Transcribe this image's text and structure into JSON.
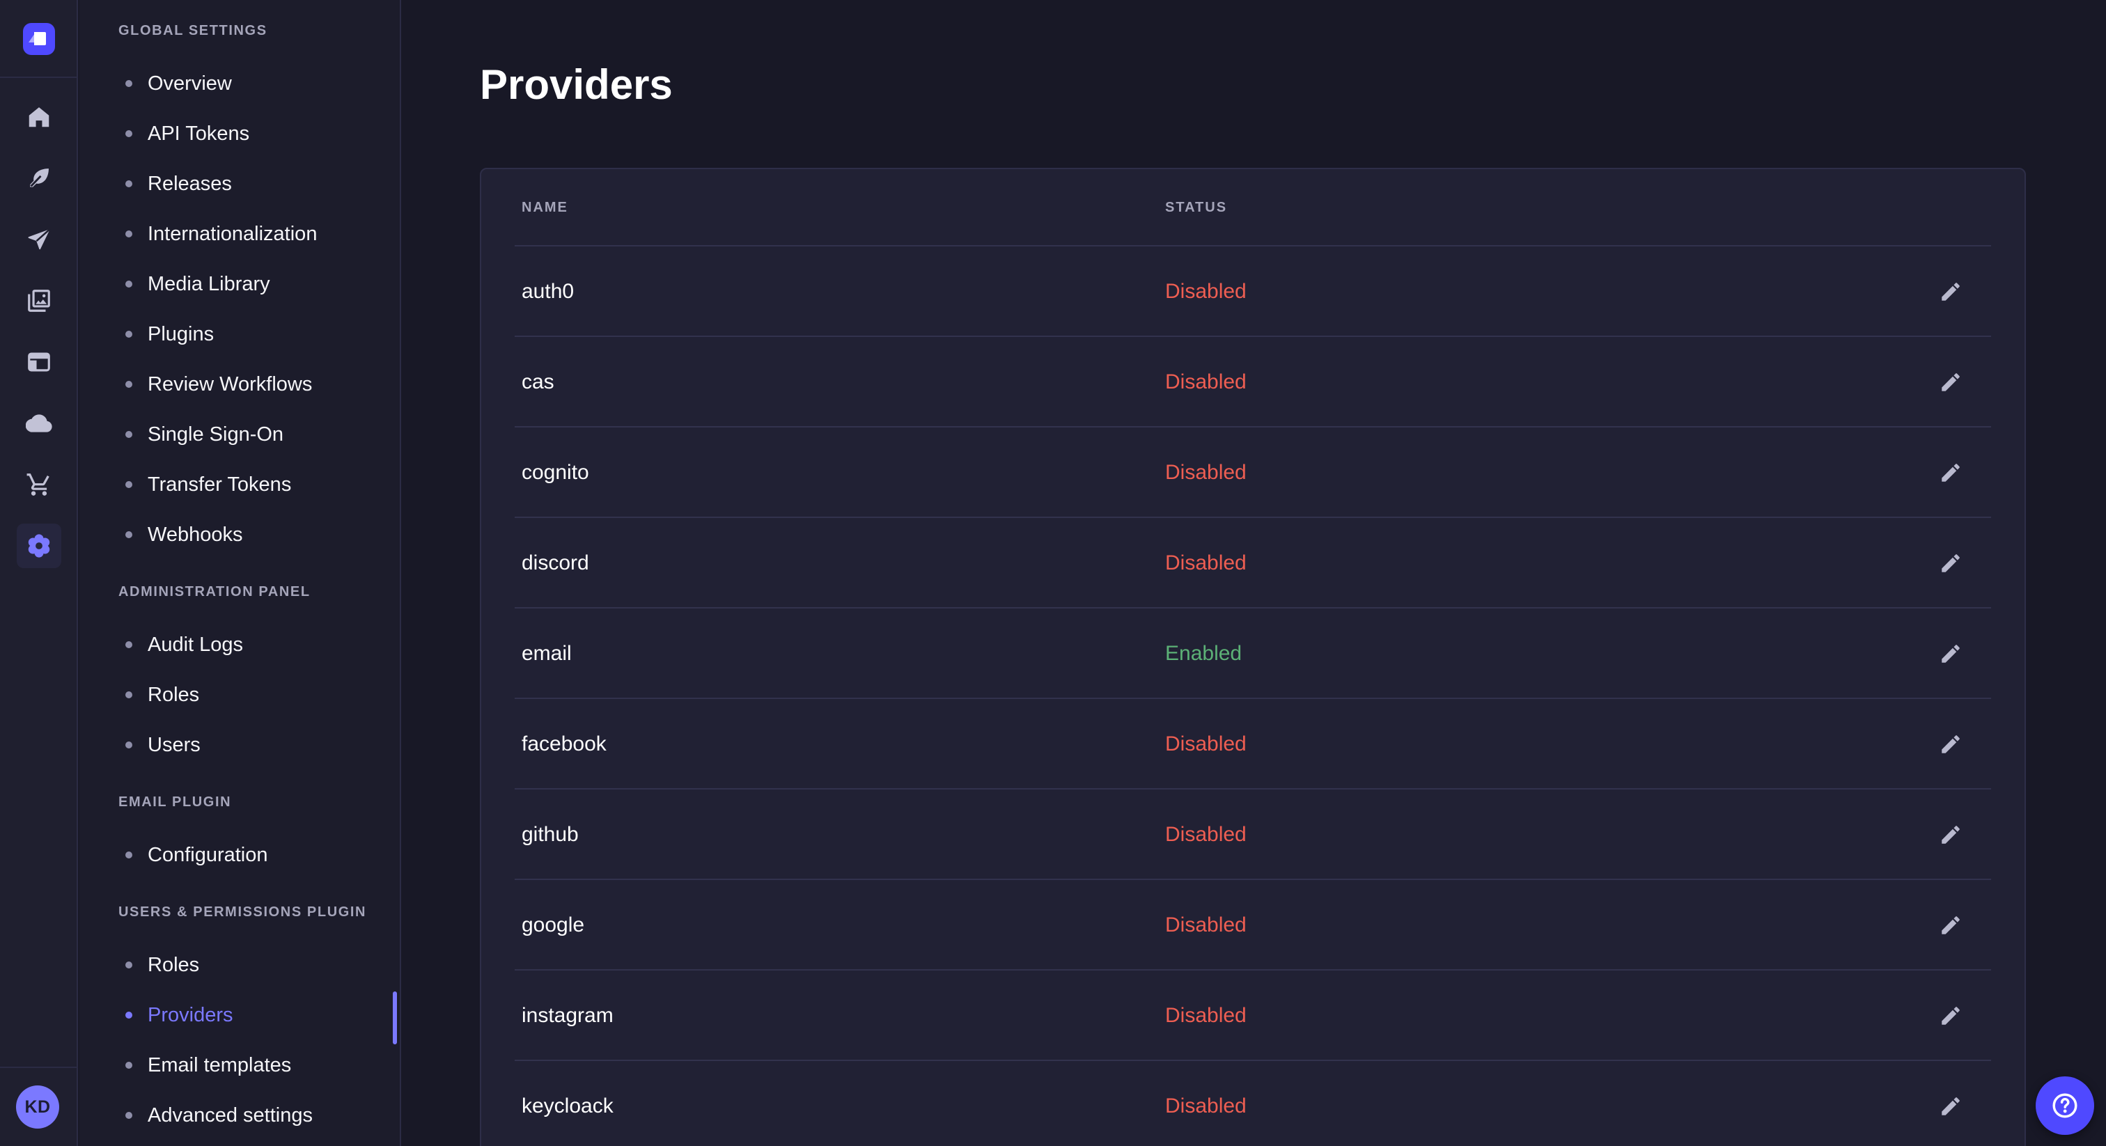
{
  "colors": {
    "primary": "#4f49ff",
    "primary_light": "#7b79ff",
    "success": "#5cb176",
    "danger": "#ee5e52",
    "surface": "#212134",
    "background": "#181826"
  },
  "nav_rail": {
    "logo_icon": "strapi-logo",
    "items": [
      {
        "icon": "home-icon"
      },
      {
        "icon": "feather-icon"
      },
      {
        "icon": "send-icon"
      },
      {
        "icon": "media-library-icon"
      },
      {
        "icon": "layout-icon"
      },
      {
        "icon": "cloud-icon"
      },
      {
        "icon": "cart-icon"
      },
      {
        "icon": "settings-gear-icon",
        "active": true
      }
    ],
    "avatar_initials": "KD"
  },
  "subnav": {
    "sections": [
      {
        "heading": "GLOBAL SETTINGS",
        "items": [
          {
            "label": "Overview"
          },
          {
            "label": "API Tokens"
          },
          {
            "label": "Releases"
          },
          {
            "label": "Internationalization"
          },
          {
            "label": "Media Library"
          },
          {
            "label": "Plugins"
          },
          {
            "label": "Review Workflows"
          },
          {
            "label": "Single Sign-On"
          },
          {
            "label": "Transfer Tokens"
          },
          {
            "label": "Webhooks"
          }
        ]
      },
      {
        "heading": "ADMINISTRATION PANEL",
        "items": [
          {
            "label": "Audit Logs"
          },
          {
            "label": "Roles"
          },
          {
            "label": "Users"
          }
        ]
      },
      {
        "heading": "EMAIL PLUGIN",
        "items": [
          {
            "label": "Configuration"
          }
        ]
      },
      {
        "heading": "USERS & PERMISSIONS PLUGIN",
        "items": [
          {
            "label": "Roles"
          },
          {
            "label": "Providers",
            "active": true
          },
          {
            "label": "Email templates"
          },
          {
            "label": "Advanced settings"
          }
        ]
      }
    ]
  },
  "page": {
    "title": "Providers"
  },
  "table": {
    "headers": [
      "NAME",
      "STATUS"
    ],
    "rows": [
      {
        "name": "auth0",
        "status": "Disabled"
      },
      {
        "name": "cas",
        "status": "Disabled"
      },
      {
        "name": "cognito",
        "status": "Disabled"
      },
      {
        "name": "discord",
        "status": "Disabled"
      },
      {
        "name": "email",
        "status": "Enabled"
      },
      {
        "name": "facebook",
        "status": "Disabled"
      },
      {
        "name": "github",
        "status": "Disabled"
      },
      {
        "name": "google",
        "status": "Disabled"
      },
      {
        "name": "instagram",
        "status": "Disabled"
      },
      {
        "name": "keycloack",
        "status": "Disabled"
      }
    ]
  },
  "help": {
    "icon": "question-mark-icon"
  }
}
